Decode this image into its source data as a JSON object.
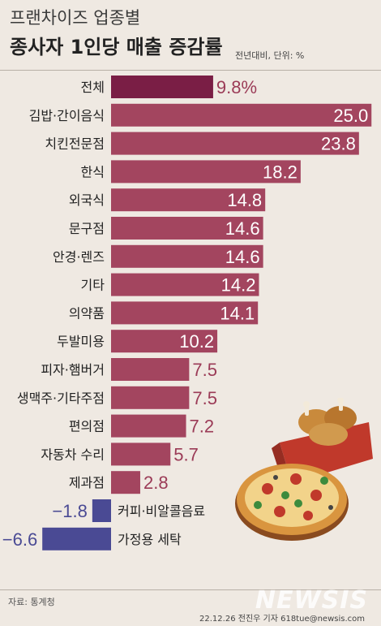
{
  "header": {
    "title_line1": "프랜차이즈 업종별",
    "title_line2": "종사자 1인당 매출 증감률",
    "unit_note": "전년대비, 단위: %"
  },
  "footer": {
    "source": "자료: 통계청",
    "byline": "22.12.26 전진우 기자 618tue@newsis.com",
    "logo_text": "NEWSIS"
  },
  "colors": {
    "background": "#efe9e2",
    "highlight_bar": "#7a1e45",
    "bar": "#a3455f",
    "negative_bar": "#4a4a94",
    "value_text_outside": "#9b3b57"
  },
  "chart_data": {
    "type": "bar",
    "orientation": "horizontal",
    "categories": [
      "전체",
      "김밥·간이음식",
      "치킨전문점",
      "한식",
      "외국식",
      "문구점",
      "안경·렌즈",
      "기타",
      "의약품",
      "두발미용",
      "피자·햄버거",
      "생맥주·기타주점",
      "편의점",
      "자동차 수리",
      "제과점",
      "커피·비알콜음료",
      "가정용 세탁"
    ],
    "values": [
      9.8,
      25.0,
      23.8,
      18.2,
      14.8,
      14.6,
      14.6,
      14.2,
      14.1,
      10.2,
      7.5,
      7.5,
      7.2,
      5.7,
      2.8,
      -1.8,
      -6.6
    ],
    "value_labels": [
      "9.8%",
      "25.0",
      "23.8",
      "18.2",
      "14.8",
      "14.6",
      "14.6",
      "14.2",
      "14.1",
      "10.2",
      "7.5",
      "7.5",
      "7.2",
      "5.7",
      "2.8",
      "−1.8",
      "−6.6"
    ],
    "highlight_index": 0,
    "xlim": [
      -6.6,
      25.0
    ]
  }
}
